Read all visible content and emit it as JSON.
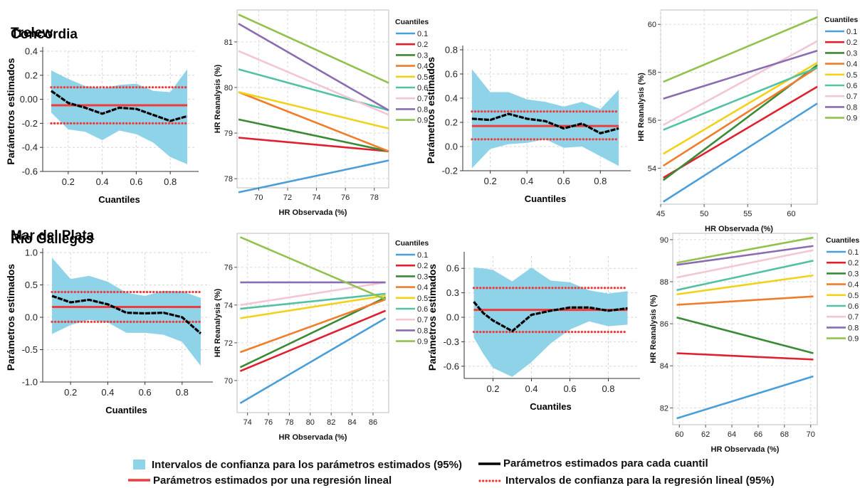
{
  "figure": {
    "legend": {
      "items": [
        {
          "label": "Intervalos de confianza para los parámetros estimados (95%)",
          "kind": "band",
          "color": "#8fd3e8"
        },
        {
          "label": "Parámetros estimados para cada cuantil",
          "kind": "line",
          "color": "#000000"
        },
        {
          "label": "Parámetros estimados por una regresión lineal",
          "kind": "line",
          "color": "#ee3b3b"
        },
        {
          "label": "Intervalos de confianza para la regresión lineal (95%)",
          "kind": "dotted",
          "color": "#ee3b3b"
        }
      ]
    },
    "quantile_colors": [
      "#4a9fd8",
      "#e0202e",
      "#3a8a36",
      "#ef7d2b",
      "#f2d219",
      "#53c1a4",
      "#f2c6d5",
      "#8a6db0",
      "#92c24e"
    ]
  },
  "chart_data": [
    {
      "type": "area",
      "title": "Concordia",
      "xlabel": "Cuantiles",
      "ylabel": "Parámetros estimados",
      "xlim": [
        0.05,
        0.95
      ],
      "ylim": [
        -0.6,
        0.4
      ],
      "xticks": [
        0.2,
        0.4,
        0.6,
        0.8
      ],
      "yticks": [
        -0.6,
        -0.4,
        -0.2,
        0.0,
        0.2,
        0.4
      ],
      "ytick_labels": [
        "-0.6",
        "-0.4",
        "-0.2",
        "0.00",
        "0.2",
        "0.4"
      ],
      "grid": true,
      "x": [
        0.1,
        0.2,
        0.3,
        0.4,
        0.5,
        0.6,
        0.7,
        0.8,
        0.9
      ],
      "estimate": [
        0.07,
        -0.03,
        -0.07,
        -0.12,
        -0.07,
        -0.08,
        -0.13,
        -0.18,
        -0.14
      ],
      "ci_upper": [
        0.24,
        0.17,
        0.11,
        0.09,
        0.12,
        0.13,
        0.07,
        0.06,
        0.25
      ],
      "ci_lower": [
        -0.11,
        -0.25,
        -0.27,
        -0.34,
        -0.26,
        -0.29,
        -0.36,
        -0.48,
        -0.54
      ],
      "ols": {
        "estimate": -0.05,
        "ci": [
          -0.2,
          0.1
        ]
      }
    },
    {
      "type": "line",
      "title": "",
      "xlabel": "HR Observada (%)",
      "ylabel": "HR Reanalysis (%)",
      "xlim": [
        68.5,
        79
      ],
      "ylim": [
        77.8,
        81.7
      ],
      "xticks": [
        70,
        72,
        74,
        76,
        78
      ],
      "yticks": [
        78,
        79,
        80,
        81
      ],
      "legend_title": "Cuantiles",
      "grid": true,
      "series": [
        {
          "name": "0.1",
          "x": [
            68.6,
            79
          ],
          "y": [
            77.7,
            78.4
          ]
        },
        {
          "name": "0.2",
          "x": [
            68.6,
            79
          ],
          "y": [
            78.9,
            78.6
          ]
        },
        {
          "name": "0.3",
          "x": [
            68.6,
            79
          ],
          "y": [
            79.3,
            78.6
          ]
        },
        {
          "name": "0.4",
          "x": [
            68.6,
            79
          ],
          "y": [
            79.9,
            78.6
          ]
        },
        {
          "name": "0.5",
          "x": [
            68.6,
            79
          ],
          "y": [
            79.9,
            79.1
          ]
        },
        {
          "name": "0.6",
          "x": [
            68.6,
            79
          ],
          "y": [
            80.4,
            79.5
          ]
        },
        {
          "name": "0.7",
          "x": [
            68.6,
            79
          ],
          "y": [
            80.8,
            79.4
          ]
        },
        {
          "name": "0.8",
          "x": [
            68.6,
            79
          ],
          "y": [
            81.4,
            79.5
          ]
        },
        {
          "name": "0.9",
          "x": [
            68.6,
            79
          ],
          "y": [
            81.6,
            80.1
          ]
        }
      ]
    },
    {
      "type": "area",
      "title": "Trelew",
      "xlabel": "Cuantiles",
      "ylabel": "Parámetros estimados",
      "xlim": [
        0.05,
        0.95
      ],
      "ylim": [
        -0.2,
        0.8
      ],
      "xticks": [
        0.2,
        0.4,
        0.6,
        0.8
      ],
      "yticks": [
        -0.2,
        0.0,
        0.2,
        0.4,
        0.6,
        0.8
      ],
      "ytick_labels": [
        "-0.2",
        "0.0",
        "0.2",
        "0.4",
        "0.6",
        "0.8"
      ],
      "grid": true,
      "x": [
        0.1,
        0.2,
        0.3,
        0.4,
        0.5,
        0.6,
        0.7,
        0.8,
        0.9
      ],
      "estimate": [
        0.23,
        0.22,
        0.27,
        0.23,
        0.21,
        0.15,
        0.19,
        0.11,
        0.15
      ],
      "ci_upper": [
        0.64,
        0.45,
        0.45,
        0.39,
        0.37,
        0.33,
        0.37,
        0.31,
        0.47
      ],
      "ci_lower": [
        -0.18,
        -0.02,
        0.02,
        0.03,
        0.06,
        -0.01,
        0.0,
        -0.08,
        -0.16
      ],
      "ols": {
        "estimate": 0.17,
        "ci": [
          0.06,
          0.29
        ]
      }
    },
    {
      "type": "line",
      "title": "",
      "xlabel": "HR Observada (%)",
      "ylabel": "HR Reanalysis (%)",
      "xlim": [
        45,
        63
      ],
      "ylim": [
        52.5,
        60.6
      ],
      "xticks": [
        45,
        50,
        55,
        60
      ],
      "yticks": [
        54,
        56,
        58,
        60
      ],
      "legend_title": "Cuantiles",
      "grid": true,
      "series": [
        {
          "name": "0.1",
          "x": [
            45.3,
            63
          ],
          "y": [
            52.6,
            56.7
          ]
        },
        {
          "name": "0.2",
          "x": [
            45.3,
            63
          ],
          "y": [
            53.6,
            57.4
          ]
        },
        {
          "name": "0.3",
          "x": [
            45.3,
            63
          ],
          "y": [
            53.5,
            58.3
          ]
        },
        {
          "name": "0.4",
          "x": [
            45.3,
            63
          ],
          "y": [
            54.1,
            58.2
          ]
        },
        {
          "name": "0.5",
          "x": [
            45.3,
            63
          ],
          "y": [
            54.6,
            58.4
          ]
        },
        {
          "name": "0.6",
          "x": [
            45.3,
            63
          ],
          "y": [
            55.6,
            58.2
          ]
        },
        {
          "name": "0.7",
          "x": [
            45.3,
            63
          ],
          "y": [
            55.8,
            59.3
          ]
        },
        {
          "name": "0.8",
          "x": [
            45.3,
            63
          ],
          "y": [
            56.9,
            58.9
          ]
        },
        {
          "name": "0.9",
          "x": [
            45.3,
            63
          ],
          "y": [
            57.6,
            60.3
          ]
        }
      ]
    },
    {
      "type": "area",
      "title": "Mar del Plata",
      "xlabel": "Cuantiles",
      "ylabel": "Parámetros estimados",
      "xlim": [
        0.05,
        0.95
      ],
      "ylim": [
        -1.0,
        1.0
      ],
      "xticks": [
        0.2,
        0.4,
        0.6,
        0.8
      ],
      "yticks": [
        -1.0,
        -0.5,
        0.0,
        0.5,
        1.0
      ],
      "ytick_labels": [
        "-1.0",
        "-0.5",
        "0.0",
        "0.5",
        "1.0"
      ],
      "grid": true,
      "x": [
        0.1,
        0.2,
        0.3,
        0.4,
        0.5,
        0.6,
        0.7,
        0.8,
        0.9
      ],
      "estimate": [
        0.33,
        0.23,
        0.27,
        0.2,
        0.07,
        0.06,
        0.07,
        0.0,
        -0.25
      ],
      "ci_upper": [
        0.92,
        0.59,
        0.64,
        0.55,
        0.38,
        0.33,
        0.41,
        0.4,
        0.3
      ],
      "ci_lower": [
        -0.26,
        -0.12,
        -0.04,
        -0.08,
        -0.24,
        -0.24,
        -0.27,
        -0.38,
        -0.75
      ],
      "ols": {
        "estimate": 0.16,
        "ci": [
          -0.07,
          0.39
        ]
      }
    },
    {
      "type": "line",
      "title": "",
      "xlabel": "HR Observada (%)",
      "ylabel": "HR Reanalysis (%)",
      "xlim": [
        73,
        87.5
      ],
      "ylim": [
        68.3,
        77.8
      ],
      "xticks": [
        74,
        76,
        78,
        80,
        82,
        84,
        86
      ],
      "yticks": [
        70,
        72,
        74,
        76
      ],
      "legend_title": "Cuantiles",
      "grid": true,
      "series": [
        {
          "name": "0.1",
          "x": [
            73.3,
            87.2
          ],
          "y": [
            68.8,
            73.3
          ]
        },
        {
          "name": "0.2",
          "x": [
            73.3,
            87.2
          ],
          "y": [
            70.5,
            73.7
          ]
        },
        {
          "name": "0.3",
          "x": [
            73.3,
            87.2
          ],
          "y": [
            70.7,
            74.4
          ]
        },
        {
          "name": "0.4",
          "x": [
            73.3,
            87.2
          ],
          "y": [
            71.5,
            74.3
          ]
        },
        {
          "name": "0.5",
          "x": [
            73.3,
            87.2
          ],
          "y": [
            73.3,
            74.5
          ]
        },
        {
          "name": "0.6",
          "x": [
            73.3,
            87.2
          ],
          "y": [
            73.8,
            74.6
          ]
        },
        {
          "name": "0.7",
          "x": [
            73.3,
            87.2
          ],
          "y": [
            74.0,
            75.2
          ]
        },
        {
          "name": "0.8",
          "x": [
            73.3,
            87.2
          ],
          "y": [
            75.2,
            75.2
          ]
        },
        {
          "name": "0.9",
          "x": [
            73.3,
            87.2
          ],
          "y": [
            77.6,
            74.3
          ]
        }
      ]
    },
    {
      "type": "area",
      "title": "Río Gallegos",
      "xlabel": "Cuantiles",
      "ylabel": "Parámetros estimados",
      "xlim": [
        0.05,
        0.95
      ],
      "ylim": [
        -0.75,
        0.75
      ],
      "xticks": [
        0.2,
        0.4,
        0.6,
        0.8
      ],
      "yticks": [
        -0.6,
        -0.3,
        0.0,
        0.3,
        0.6
      ],
      "ytick_labels": [
        "-0.6",
        "-0.3",
        "0.0",
        "0.3",
        "0.6"
      ],
      "grid": true,
      "x": [
        0.1,
        0.15,
        0.2,
        0.3,
        0.4,
        0.5,
        0.6,
        0.7,
        0.8,
        0.9
      ],
      "estimate": [
        0.19,
        0.05,
        -0.04,
        -0.17,
        0.03,
        0.08,
        0.12,
        0.12,
        0.08,
        0.11
      ],
      "ci_upper": [
        0.61,
        0.6,
        0.58,
        0.44,
        0.61,
        0.45,
        0.43,
        0.33,
        0.29,
        0.32
      ],
      "ci_lower": [
        -0.25,
        -0.45,
        -0.62,
        -0.73,
        -0.55,
        -0.32,
        -0.15,
        -0.05,
        -0.11,
        -0.09
      ],
      "ols": {
        "estimate": 0.09,
        "ci": [
          -0.18,
          0.36
        ]
      }
    },
    {
      "type": "line",
      "title": "",
      "xlabel": "HR Observada (%)",
      "ylabel": "HR Reanalysis (%)",
      "xlim": [
        59.5,
        70.5
      ],
      "ylim": [
        81.2,
        90.3
      ],
      "xticks": [
        60,
        62,
        64,
        66,
        68,
        70
      ],
      "yticks": [
        82,
        84,
        86,
        88,
        90
      ],
      "legend_title": "Cuantiles",
      "grid": true,
      "series": [
        {
          "name": "0.1",
          "x": [
            59.8,
            70.2
          ],
          "y": [
            81.5,
            83.5
          ]
        },
        {
          "name": "0.2",
          "x": [
            59.8,
            70.2
          ],
          "y": [
            84.6,
            84.3
          ]
        },
        {
          "name": "0.3",
          "x": [
            59.8,
            70.2
          ],
          "y": [
            86.3,
            84.6
          ]
        },
        {
          "name": "0.4",
          "x": [
            59.8,
            70.2
          ],
          "y": [
            86.9,
            87.3
          ]
        },
        {
          "name": "0.5",
          "x": [
            59.8,
            70.2
          ],
          "y": [
            87.4,
            88.3
          ]
        },
        {
          "name": "0.6",
          "x": [
            59.8,
            70.2
          ],
          "y": [
            87.6,
            89.0
          ]
        },
        {
          "name": "0.7",
          "x": [
            59.8,
            70.2
          ],
          "y": [
            88.2,
            89.5
          ]
        },
        {
          "name": "0.8",
          "x": [
            59.8,
            70.2
          ],
          "y": [
            88.8,
            89.7
          ]
        },
        {
          "name": "0.9",
          "x": [
            59.8,
            70.2
          ],
          "y": [
            88.9,
            90.1
          ]
        }
      ]
    }
  ]
}
